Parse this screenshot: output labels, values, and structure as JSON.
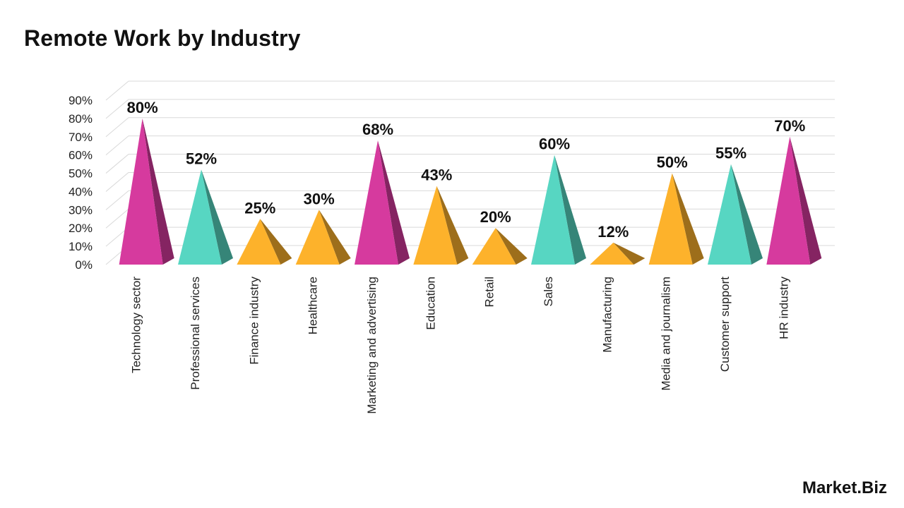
{
  "brand": {
    "logo_text": "Market.Biz"
  },
  "colors": {
    "magenta": "#D63A9E",
    "teal": "#57D6C2",
    "amber": "#FDB22B"
  },
  "chart_data": {
    "type": "bar",
    "title": "Remote Work by Industry",
    "xlabel": "",
    "ylabel": "",
    "ylim": [
      0,
      90
    ],
    "yticks": [
      0,
      10,
      20,
      30,
      40,
      50,
      60,
      70,
      80,
      90
    ],
    "ytick_labels": [
      "0%",
      "10%",
      "20%",
      "30%",
      "40%",
      "50%",
      "60%",
      "70%",
      "80%",
      "90%"
    ],
    "grid": true,
    "mark_shape": "pyramid",
    "categories": [
      "Technology sector",
      "Professional services",
      "Finance industry",
      "Healthcare",
      "Marketing and advertising",
      "Education",
      "Retail",
      "Sales",
      "Manufacturing",
      "Media and journalism",
      "Customer support",
      "HR industry"
    ],
    "values": [
      80,
      52,
      25,
      30,
      68,
      43,
      20,
      60,
      12,
      50,
      55,
      70
    ],
    "value_labels": [
      "80%",
      "52%",
      "25%",
      "30%",
      "68%",
      "43%",
      "20%",
      "60%",
      "12%",
      "50%",
      "55%",
      "70%"
    ],
    "bar_colors": [
      "#D63A9E",
      "#57D6C2",
      "#FDB22B",
      "#FDB22B",
      "#D63A9E",
      "#FDB22B",
      "#FDB22B",
      "#57D6C2",
      "#FDB22B",
      "#FDB22B",
      "#57D6C2",
      "#D63A9E"
    ]
  }
}
